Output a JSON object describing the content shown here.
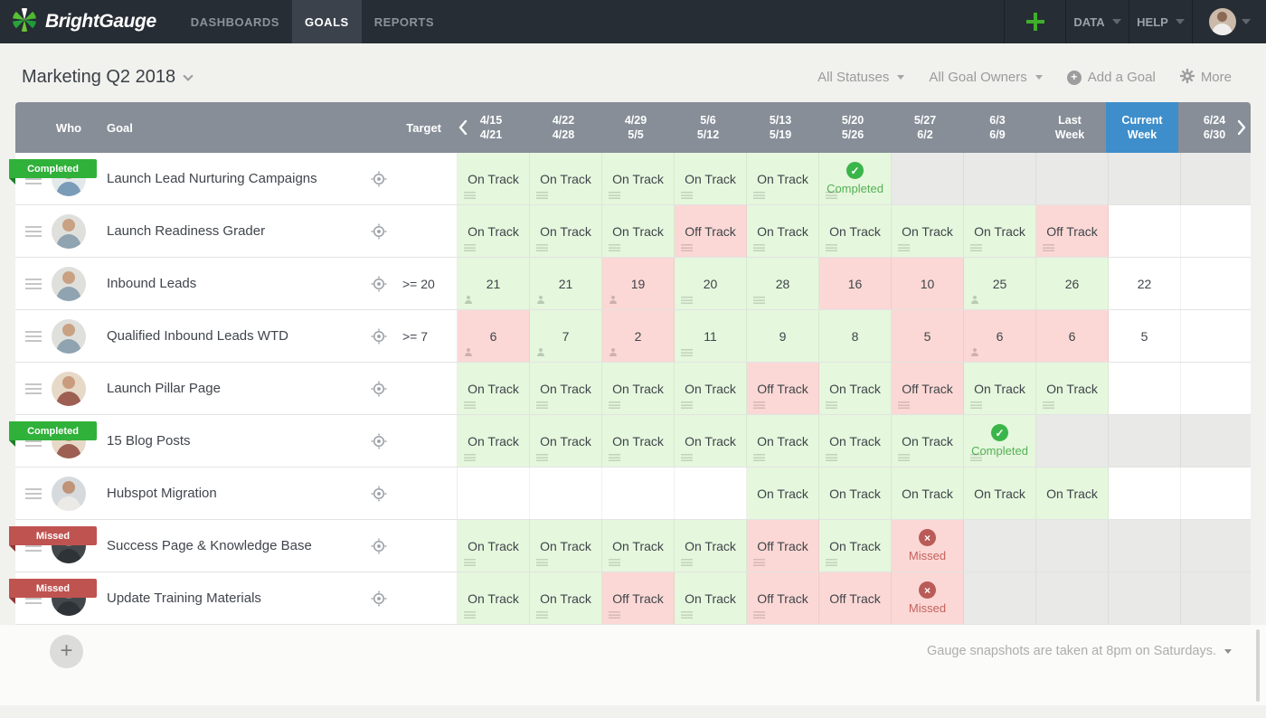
{
  "navbar": {
    "brand": "BrightGauge",
    "tabs": [
      {
        "label": "DASHBOARDS",
        "active": false
      },
      {
        "label": "GOALS",
        "active": true
      },
      {
        "label": "REPORTS",
        "active": false
      }
    ],
    "menus": [
      {
        "label": "DATA"
      },
      {
        "label": "HELP"
      }
    ]
  },
  "header": {
    "title": "Marketing Q2 2018",
    "filters": [
      "All Statuses",
      "All Goal Owners"
    ],
    "add_goal_label": "Add a Goal",
    "more_label": "More"
  },
  "table": {
    "columns": {
      "who": "Who",
      "goal": "Goal",
      "target": "Target"
    },
    "weeks": [
      [
        "4/15",
        "4/21"
      ],
      [
        "4/22",
        "4/28"
      ],
      [
        "4/29",
        "5/5"
      ],
      [
        "5/6",
        "5/12"
      ],
      [
        "5/13",
        "5/19"
      ],
      [
        "5/20",
        "5/26"
      ],
      [
        "5/27",
        "6/2"
      ],
      [
        "6/3",
        "6/9"
      ],
      [
        "Last",
        "Week"
      ],
      [
        "Current",
        "Week"
      ],
      [
        "6/24",
        "6/30"
      ]
    ],
    "current_week_index": 9,
    "status_labels": {
      "on_track": "On Track",
      "off_track": "Off Track",
      "completed": "Completed",
      "missed": "Missed"
    },
    "rows": [
      {
        "badge": "Completed",
        "goal": "Launch Lead Nurturing Campaigns",
        "target": "",
        "avatar": 0,
        "cells": [
          {
            "t": "On Track",
            "s": "g",
            "n": "lines"
          },
          {
            "t": "On Track",
            "s": "g",
            "n": "lines"
          },
          {
            "t": "On Track",
            "s": "g",
            "n": "lines"
          },
          {
            "t": "On Track",
            "s": "g",
            "n": "lines"
          },
          {
            "t": "On Track",
            "s": "g",
            "n": "lines"
          },
          {
            "t": "Completed",
            "s": "done",
            "n": "lines"
          },
          {
            "s": "gray"
          },
          {
            "s": "gray"
          },
          {
            "s": "gray"
          },
          {
            "s": "gray"
          },
          {
            "s": "gray"
          }
        ]
      },
      {
        "badge": null,
        "goal": "Launch Readiness Grader",
        "target": "",
        "avatar": 1,
        "cells": [
          {
            "t": "On Track",
            "s": "g",
            "n": "lines"
          },
          {
            "t": "On Track",
            "s": "g",
            "n": "lines"
          },
          {
            "t": "On Track",
            "s": "g",
            "n": "lines"
          },
          {
            "t": "Off Track",
            "s": "r",
            "n": "lines"
          },
          {
            "t": "On Track",
            "s": "g",
            "n": "lines"
          },
          {
            "t": "On Track",
            "s": "g",
            "n": "lines"
          },
          {
            "t": "On Track",
            "s": "g",
            "n": "lines"
          },
          {
            "t": "On Track",
            "s": "g",
            "n": "lines"
          },
          {
            "t": "Off Track",
            "s": "r",
            "n": "lines"
          },
          {
            "s": "empty"
          },
          {
            "s": "empty"
          }
        ]
      },
      {
        "badge": null,
        "goal": "Inbound Leads",
        "target": ">= 20",
        "avatar": 1,
        "cells": [
          {
            "t": "21",
            "s": "g",
            "n": "person"
          },
          {
            "t": "21",
            "s": "g",
            "n": "person"
          },
          {
            "t": "19",
            "s": "r",
            "n": "person"
          },
          {
            "t": "20",
            "s": "g",
            "n": "lines"
          },
          {
            "t": "28",
            "s": "g",
            "n": "lines"
          },
          {
            "t": "16",
            "s": "r"
          },
          {
            "t": "10",
            "s": "r"
          },
          {
            "t": "25",
            "s": "g",
            "n": "person"
          },
          {
            "t": "26",
            "s": "g"
          },
          {
            "t": "22",
            "s": "plain"
          },
          {
            "s": "empty"
          }
        ]
      },
      {
        "badge": null,
        "goal": "Qualified Inbound Leads WTD",
        "target": ">= 7",
        "avatar": 1,
        "cells": [
          {
            "t": "6",
            "s": "r",
            "n": "person"
          },
          {
            "t": "7",
            "s": "g",
            "n": "person"
          },
          {
            "t": "2",
            "s": "r",
            "n": "person"
          },
          {
            "t": "11",
            "s": "g",
            "n": "lines"
          },
          {
            "t": "9",
            "s": "g"
          },
          {
            "t": "8",
            "s": "g"
          },
          {
            "t": "5",
            "s": "r"
          },
          {
            "t": "6",
            "s": "r",
            "n": "person"
          },
          {
            "t": "6",
            "s": "r"
          },
          {
            "t": "5",
            "s": "plain"
          },
          {
            "s": "empty"
          }
        ]
      },
      {
        "badge": null,
        "goal": "Launch Pillar Page",
        "target": "",
        "avatar": 2,
        "cells": [
          {
            "t": "On Track",
            "s": "g",
            "n": "lines"
          },
          {
            "t": "On Track",
            "s": "g",
            "n": "lines"
          },
          {
            "t": "On Track",
            "s": "g",
            "n": "lines"
          },
          {
            "t": "On Track",
            "s": "g",
            "n": "lines"
          },
          {
            "t": "Off Track",
            "s": "r",
            "n": "lines"
          },
          {
            "t": "On Track",
            "s": "g",
            "n": "lines"
          },
          {
            "t": "Off Track",
            "s": "r",
            "n": "lines"
          },
          {
            "t": "On Track",
            "s": "g",
            "n": "lines"
          },
          {
            "t": "On Track",
            "s": "g",
            "n": "lines"
          },
          {
            "s": "empty"
          },
          {
            "s": "empty"
          }
        ]
      },
      {
        "badge": "Completed",
        "goal": "15 Blog Posts",
        "target": "",
        "avatar": 2,
        "cells": [
          {
            "t": "On Track",
            "s": "g",
            "n": "lines"
          },
          {
            "t": "On Track",
            "s": "g",
            "n": "lines"
          },
          {
            "t": "On Track",
            "s": "g",
            "n": "lines"
          },
          {
            "t": "On Track",
            "s": "g",
            "n": "lines"
          },
          {
            "t": "On Track",
            "s": "g",
            "n": "lines"
          },
          {
            "t": "On Track",
            "s": "g",
            "n": "lines"
          },
          {
            "t": "On Track",
            "s": "g",
            "n": "lines"
          },
          {
            "t": "Completed",
            "s": "done",
            "n": "lines"
          },
          {
            "s": "gray"
          },
          {
            "s": "gray"
          },
          {
            "s": "gray"
          }
        ]
      },
      {
        "badge": null,
        "goal": "Hubspot Migration",
        "target": "",
        "avatar": 3,
        "cells": [
          {
            "s": "empty"
          },
          {
            "s": "empty"
          },
          {
            "s": "empty"
          },
          {
            "s": "empty"
          },
          {
            "t": "On Track",
            "s": "g"
          },
          {
            "t": "On Track",
            "s": "g"
          },
          {
            "t": "On Track",
            "s": "g"
          },
          {
            "t": "On Track",
            "s": "g"
          },
          {
            "t": "On Track",
            "s": "g"
          },
          {
            "s": "empty"
          },
          {
            "s": "empty"
          }
        ]
      },
      {
        "badge": "Missed",
        "goal": "Success Page & Knowledge Base",
        "target": "",
        "avatar": 4,
        "cells": [
          {
            "t": "On Track",
            "s": "g",
            "n": "lines"
          },
          {
            "t": "On Track",
            "s": "g",
            "n": "lines"
          },
          {
            "t": "On Track",
            "s": "g",
            "n": "lines"
          },
          {
            "t": "On Track",
            "s": "g",
            "n": "lines"
          },
          {
            "t": "Off Track",
            "s": "r",
            "n": "lines"
          },
          {
            "t": "On Track",
            "s": "g",
            "n": "lines"
          },
          {
            "t": "Missed",
            "s": "miss"
          },
          {
            "s": "gray"
          },
          {
            "s": "gray"
          },
          {
            "s": "gray"
          },
          {
            "s": "gray"
          }
        ]
      },
      {
        "badge": "Missed",
        "goal": "Update Training Materials",
        "target": "",
        "avatar": 4,
        "cells": [
          {
            "t": "On Track",
            "s": "g",
            "n": "lines"
          },
          {
            "t": "On Track",
            "s": "g",
            "n": "lines"
          },
          {
            "t": "Off Track",
            "s": "r",
            "n": "lines"
          },
          {
            "t": "On Track",
            "s": "g",
            "n": "lines"
          },
          {
            "t": "Off Track",
            "s": "r",
            "n": "lines"
          },
          {
            "t": "Off Track",
            "s": "r"
          },
          {
            "t": "Missed",
            "s": "miss"
          },
          {
            "s": "gray"
          },
          {
            "s": "gray"
          },
          {
            "s": "gray"
          },
          {
            "s": "gray"
          }
        ]
      }
    ]
  },
  "avatars": [
    {
      "bg": "#e3e9ea",
      "head": "#c9a085",
      "body": "#7b9cb8"
    },
    {
      "bg": "#dfe0dc",
      "head": "#c9a183",
      "body": "#8fa3b0"
    },
    {
      "bg": "#e7d9c8",
      "head": "#c89c7d",
      "body": "#9c5f52"
    },
    {
      "bg": "#d6dadd",
      "head": "#bf9478",
      "body": "#eceae6"
    },
    {
      "bg": "#42474c",
      "head": "#8a7666",
      "body": "#2e3338"
    }
  ],
  "nav_avatar": {
    "bg": "#cbb9a9",
    "head": "#8a6a55",
    "body": "#efeeec"
  },
  "footer": {
    "snapshot_note": "Gauge snapshots are taken at 8pm on Saturdays."
  },
  "colors": {
    "navbar_bg": "#272d34",
    "accent_green": "#3fae2a",
    "header_gray": "#878e98",
    "current_week_blue": "#3e8ecb",
    "on_track_bg": "#e5f7dd",
    "off_track_bg": "#fbd8d5",
    "disabled_bg": "#e9e9e8",
    "completed_green": "#3ab54a",
    "missed_red": "#b95b58"
  }
}
